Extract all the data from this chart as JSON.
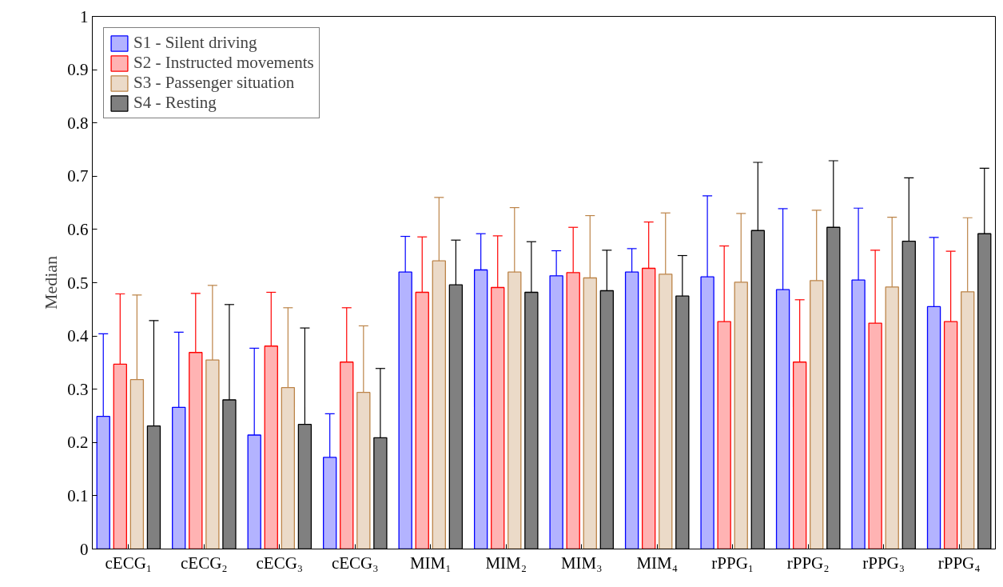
{
  "chart_data": {
    "type": "bar",
    "ylabel": "Median",
    "categories": [
      "cECG₁",
      "cECG₂",
      "cECG₃",
      "cECG₃",
      "MIM₁",
      "MIM₂",
      "MIM₃",
      "MIM₄",
      "rPPG₁",
      "rPPG₂",
      "rPPG₃",
      "rPPG₄"
    ],
    "ylim": [
      0,
      1
    ],
    "yticks": [
      0,
      0.1,
      0.2,
      0.3,
      0.4,
      0.5,
      0.6,
      0.7,
      0.8,
      0.9,
      1
    ],
    "grid": false,
    "legend": "top left",
    "series": [
      {
        "name": "S1 - Silent driving",
        "color": "#b3b3ff",
        "values": [
          0.249,
          0.266,
          0.214,
          0.172,
          0.52,
          0.524,
          0.513,
          0.52,
          0.511,
          0.487,
          0.505,
          0.455
        ],
        "errors": [
          0.155,
          0.141,
          0.163,
          0.082,
          0.067,
          0.068,
          0.047,
          0.044,
          0.152,
          0.152,
          0.135,
          0.13
        ]
      },
      {
        "name": "S2 - Instructed movements",
        "color": "#ffb3b3",
        "values": [
          0.347,
          0.369,
          0.381,
          0.351,
          0.482,
          0.491,
          0.519,
          0.527,
          0.427,
          0.351,
          0.424,
          0.427
        ],
        "errors": [
          0.132,
          0.111,
          0.101,
          0.102,
          0.104,
          0.097,
          0.085,
          0.087,
          0.142,
          0.117,
          0.137,
          0.132
        ]
      },
      {
        "name": "S3 - Passenger situation",
        "color": "#ebdac8",
        "values": [
          0.318,
          0.355,
          0.303,
          0.294,
          0.541,
          0.52,
          0.509,
          0.516,
          0.501,
          0.504,
          0.492,
          0.483
        ],
        "errors": [
          0.159,
          0.14,
          0.15,
          0.125,
          0.119,
          0.121,
          0.117,
          0.115,
          0.129,
          0.132,
          0.131,
          0.139
        ]
      },
      {
        "name": "S4 - Resting",
        "color": "#808080",
        "values": [
          0.231,
          0.28,
          0.234,
          0.209,
          0.496,
          0.482,
          0.485,
          0.475,
          0.598,
          0.604,
          0.578,
          0.592
        ],
        "errors": [
          0.198,
          0.179,
          0.181,
          0.13,
          0.084,
          0.095,
          0.076,
          0.076,
          0.128,
          0.125,
          0.119,
          0.123
        ]
      }
    ]
  }
}
